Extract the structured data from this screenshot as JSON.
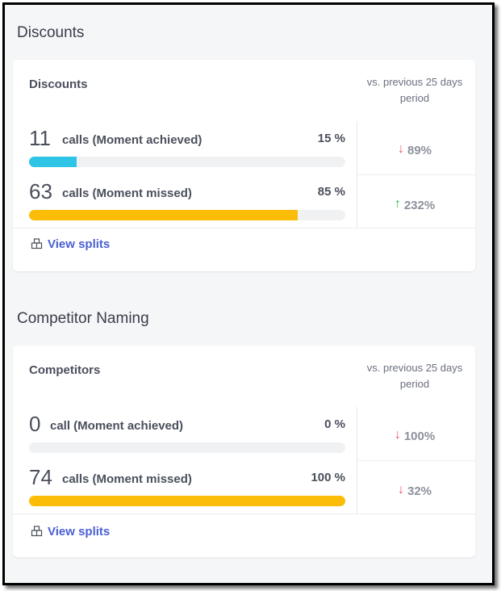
{
  "sections": [
    {
      "title": "Discounts",
      "card_label": "Discounts",
      "vs_label": "vs. previous 25 days period",
      "rows": [
        {
          "count": "11",
          "desc": "calls (Moment achieved)",
          "pct": "15 %",
          "fill": 0.15,
          "color": "#2ec4e6",
          "delta": "89%",
          "direction": "down",
          "delta_color": "#f0506e"
        },
        {
          "count": "63",
          "desc": "calls (Moment missed)",
          "pct": "85 %",
          "fill": 0.85,
          "color": "#fbbd08",
          "delta": "232%",
          "direction": "up",
          "delta_color": "#21ba45"
        }
      ],
      "link": "View splits",
      "link_icon": "split-icon"
    },
    {
      "title": "Competitor Naming",
      "card_label": "Competitors",
      "vs_label": "vs. previous 25 days period",
      "rows": [
        {
          "count": "0",
          "desc": "call (Moment achieved)",
          "pct": "0 %",
          "fill": 0.0,
          "color": "#2ec4e6",
          "delta": "100%",
          "direction": "down",
          "delta_color": "#f0506e"
        },
        {
          "count": "74",
          "desc": "calls (Moment missed)",
          "pct": "100 %",
          "fill": 1.0,
          "color": "#fbbd08",
          "delta": "32%",
          "direction": "down",
          "delta_color": "#f0506e"
        }
      ],
      "link": "View splits",
      "link_icon": "split-icon"
    }
  ]
}
